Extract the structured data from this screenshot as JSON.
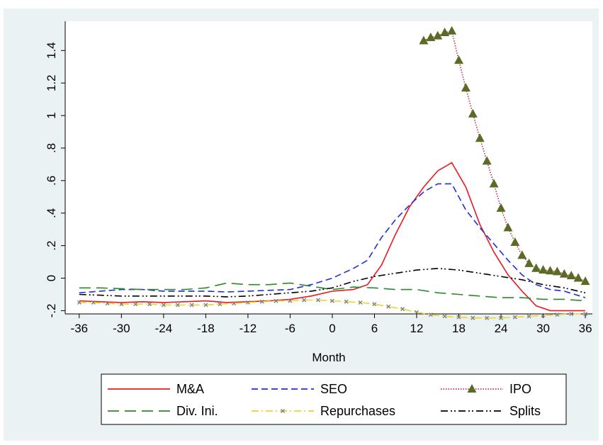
{
  "chart_data": {
    "type": "line",
    "title": "",
    "xlabel": "Month",
    "ylabel": "",
    "xlim": [
      -38,
      37
    ],
    "ylim": [
      -0.22,
      1.58
    ],
    "xticks": [
      -36,
      -30,
      -24,
      -18,
      -12,
      -6,
      0,
      6,
      12,
      18,
      24,
      30,
      36
    ],
    "yticks": [
      -0.2,
      0,
      0.2,
      0.4,
      0.6,
      0.8,
      1,
      1.2,
      1.4
    ],
    "ytick_labels": [
      "-.2",
      "0",
      ".2",
      ".4",
      ".6",
      ".8",
      "1",
      "1.2",
      "1.4"
    ],
    "grid": false,
    "legend_position": "bottom",
    "series": [
      {
        "name": "M&A",
        "color": "#e8191f",
        "style": "solid",
        "marker": "none",
        "x": [
          -36,
          -33,
          -30,
          -27,
          -24,
          -21,
          -18,
          -15,
          -12,
          -9,
          -6,
          -3,
          0,
          3,
          5,
          7,
          9,
          11,
          13,
          15,
          17,
          19,
          21,
          23,
          25,
          27,
          29,
          31,
          33,
          36
        ],
        "y": [
          -0.14,
          -0.145,
          -0.15,
          -0.145,
          -0.15,
          -0.145,
          -0.14,
          -0.15,
          -0.145,
          -0.14,
          -0.13,
          -0.11,
          -0.08,
          -0.07,
          -0.04,
          0.08,
          0.27,
          0.44,
          0.56,
          0.66,
          0.71,
          0.56,
          0.33,
          0.16,
          0.02,
          -0.08,
          -0.17,
          -0.2,
          -0.2,
          -0.2
        ]
      },
      {
        "name": "SEO",
        "color": "#1f2ed9",
        "style": "dashed",
        "marker": "none",
        "x": [
          -36,
          -33,
          -30,
          -27,
          -24,
          -21,
          -18,
          -15,
          -12,
          -9,
          -6,
          -3,
          0,
          3,
          5,
          7,
          9,
          11,
          13,
          15,
          17,
          19,
          21,
          23,
          25,
          27,
          29,
          31,
          33,
          36
        ],
        "y": [
          -0.09,
          -0.08,
          -0.07,
          -0.07,
          -0.08,
          -0.08,
          -0.08,
          -0.085,
          -0.08,
          -0.075,
          -0.07,
          -0.04,
          0,
          0.06,
          0.11,
          0.25,
          0.36,
          0.45,
          0.53,
          0.58,
          0.58,
          0.42,
          0.31,
          0.21,
          0.11,
          0.02,
          -0.04,
          -0.07,
          -0.08,
          -0.12
        ]
      },
      {
        "name": "IPO",
        "color": "#c0304a",
        "style": "dotted",
        "marker": "triangle",
        "marker_color": "#5a6b26",
        "x": [
          13,
          14,
          15,
          16,
          17,
          18,
          19,
          20,
          21,
          22,
          23,
          24,
          25,
          26,
          27,
          28,
          29,
          30,
          31,
          32,
          33,
          34,
          35,
          36
        ],
        "y": [
          1.46,
          1.48,
          1.49,
          1.51,
          1.52,
          1.34,
          1.17,
          1.01,
          0.86,
          0.72,
          0.58,
          0.43,
          0.31,
          0.22,
          0.14,
          0.09,
          0.06,
          0.05,
          0.045,
          0.04,
          0.025,
          0.015,
          0,
          -0.02
        ]
      },
      {
        "name": "Div. Ini.",
        "color": "#2a8a2a",
        "style": "longdash",
        "marker": "none",
        "x": [
          -36,
          -33,
          -30,
          -27,
          -24,
          -21,
          -18,
          -15,
          -12,
          -9,
          -6,
          -3,
          0,
          3,
          6,
          9,
          12,
          15,
          18,
          21,
          24,
          27,
          30,
          33,
          36
        ],
        "y": [
          -0.06,
          -0.06,
          -0.065,
          -0.07,
          -0.07,
          -0.07,
          -0.06,
          -0.03,
          -0.04,
          -0.04,
          -0.03,
          -0.05,
          -0.07,
          -0.055,
          -0.06,
          -0.07,
          -0.07,
          -0.09,
          -0.1,
          -0.11,
          -0.12,
          -0.12,
          -0.13,
          -0.13,
          -0.14
        ]
      },
      {
        "name": "Repurchases",
        "color": "#f2d12b",
        "style": "dashdot",
        "marker": "x",
        "marker_color": "#7f7f7f",
        "x": [
          -36,
          -34,
          -32,
          -30,
          -28,
          -26,
          -24,
          -22,
          -20,
          -18,
          -16,
          -14,
          -12,
          -10,
          -8,
          -6,
          -4,
          -2,
          0,
          2,
          4,
          6,
          8,
          10,
          12,
          14,
          16,
          18,
          20,
          22,
          24,
          26,
          28,
          30,
          32,
          34,
          36
        ],
        "y": [
          -0.15,
          -0.15,
          -0.155,
          -0.16,
          -0.16,
          -0.16,
          -0.165,
          -0.165,
          -0.165,
          -0.165,
          -0.16,
          -0.155,
          -0.15,
          -0.145,
          -0.14,
          -0.14,
          -0.135,
          -0.135,
          -0.14,
          -0.145,
          -0.15,
          -0.16,
          -0.175,
          -0.19,
          -0.21,
          -0.225,
          -0.235,
          -0.24,
          -0.245,
          -0.245,
          -0.245,
          -0.24,
          -0.235,
          -0.23,
          -0.225,
          -0.22,
          -0.22
        ]
      },
      {
        "name": "Splits",
        "color": "#000000",
        "style": "dashdotdot",
        "marker": "none",
        "x": [
          -36,
          -33,
          -30,
          -27,
          -24,
          -21,
          -18,
          -15,
          -12,
          -9,
          -6,
          -3,
          0,
          3,
          6,
          9,
          12,
          15,
          18,
          21,
          24,
          27,
          30,
          33,
          36
        ],
        "y": [
          -0.1,
          -0.105,
          -0.11,
          -0.11,
          -0.11,
          -0.11,
          -0.11,
          -0.115,
          -0.11,
          -0.1,
          -0.09,
          -0.08,
          -0.06,
          -0.02,
          0.01,
          0.03,
          0.05,
          0.06,
          0.05,
          0.03,
          0.01,
          -0.01,
          -0.04,
          -0.06,
          -0.09
        ]
      }
    ],
    "legend_order": [
      "M&A",
      "SEO",
      "IPO",
      "Div. Ini.",
      "Repurchases",
      "Splits"
    ]
  }
}
